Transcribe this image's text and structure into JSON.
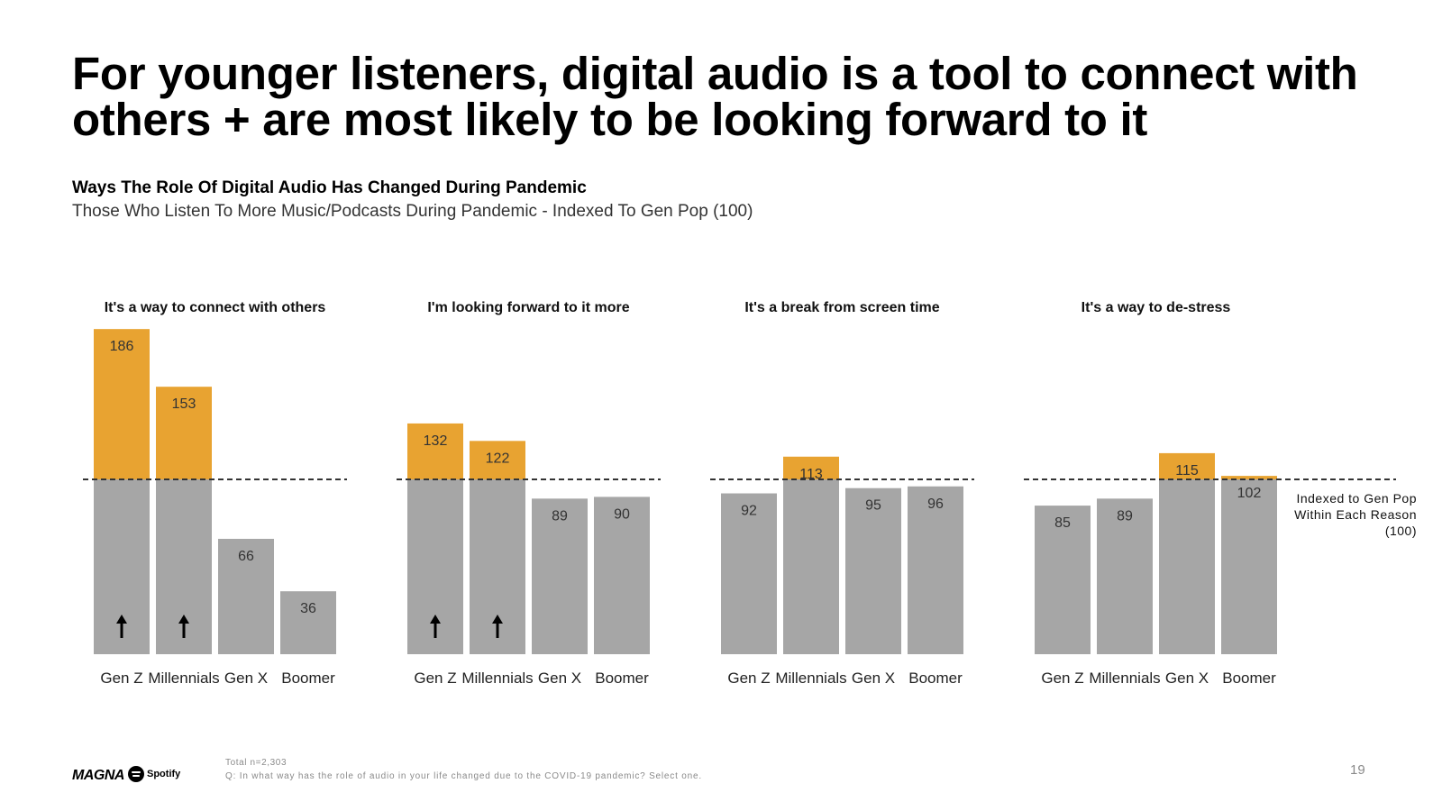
{
  "page": {
    "title": "For younger listeners, digital audio is a tool to connect with others + are most likely to be looking forward to it",
    "subtitle": "Ways The Role Of Digital Audio Has Changed During Pandemic",
    "subtitle2": "Those Who Listen To More Music/Podcasts During Pandemic - Indexed To Gen Pop (100)",
    "indexed_note": "Indexed to Gen Pop Within Each Reason (100)",
    "footer_total": "Total n=2,303",
    "footer_question": "Q: In what way has the role of audio in your life changed due to the COVID-19 pandemic? Select one.",
    "page_number": "19",
    "logo_magna": "MAGNA",
    "logo_spotify": "Spotify"
  },
  "colors": {
    "above_baseline": "#E8A331",
    "below_baseline": "#A6A6A6",
    "baseline_line": "#333333",
    "arrow": "#000000"
  },
  "chart_data": [
    {
      "type": "bar",
      "title": "It's a way to connect with others",
      "categories": [
        "Gen Z",
        "Millennials",
        "Gen X",
        "Boomer"
      ],
      "values": [
        186,
        153,
        66,
        36
      ],
      "baseline": 100,
      "up_arrows": [
        true,
        true,
        false,
        false
      ],
      "ylim": [
        0,
        186
      ]
    },
    {
      "type": "bar",
      "title": "I'm looking forward to it more",
      "categories": [
        "Gen Z",
        "Millennials",
        "Gen X",
        "Boomer"
      ],
      "values": [
        132,
        122,
        89,
        90
      ],
      "baseline": 100,
      "up_arrows": [
        true,
        true,
        false,
        false
      ],
      "ylim": [
        0,
        186
      ]
    },
    {
      "type": "bar",
      "title": "It's a break from screen time",
      "categories": [
        "Gen Z",
        "Millennials",
        "Gen X",
        "Boomer"
      ],
      "values": [
        92,
        113,
        95,
        96
      ],
      "baseline": 100,
      "up_arrows": [
        false,
        false,
        false,
        false
      ],
      "ylim": [
        0,
        186
      ]
    },
    {
      "type": "bar",
      "title": "It's a way to de-stress",
      "categories": [
        "Gen Z",
        "Millennials",
        "Gen X",
        "Boomer"
      ],
      "values": [
        85,
        89,
        115,
        102
      ],
      "baseline": 100,
      "up_arrows": [
        false,
        false,
        false,
        false
      ],
      "ylim": [
        0,
        186
      ]
    }
  ]
}
